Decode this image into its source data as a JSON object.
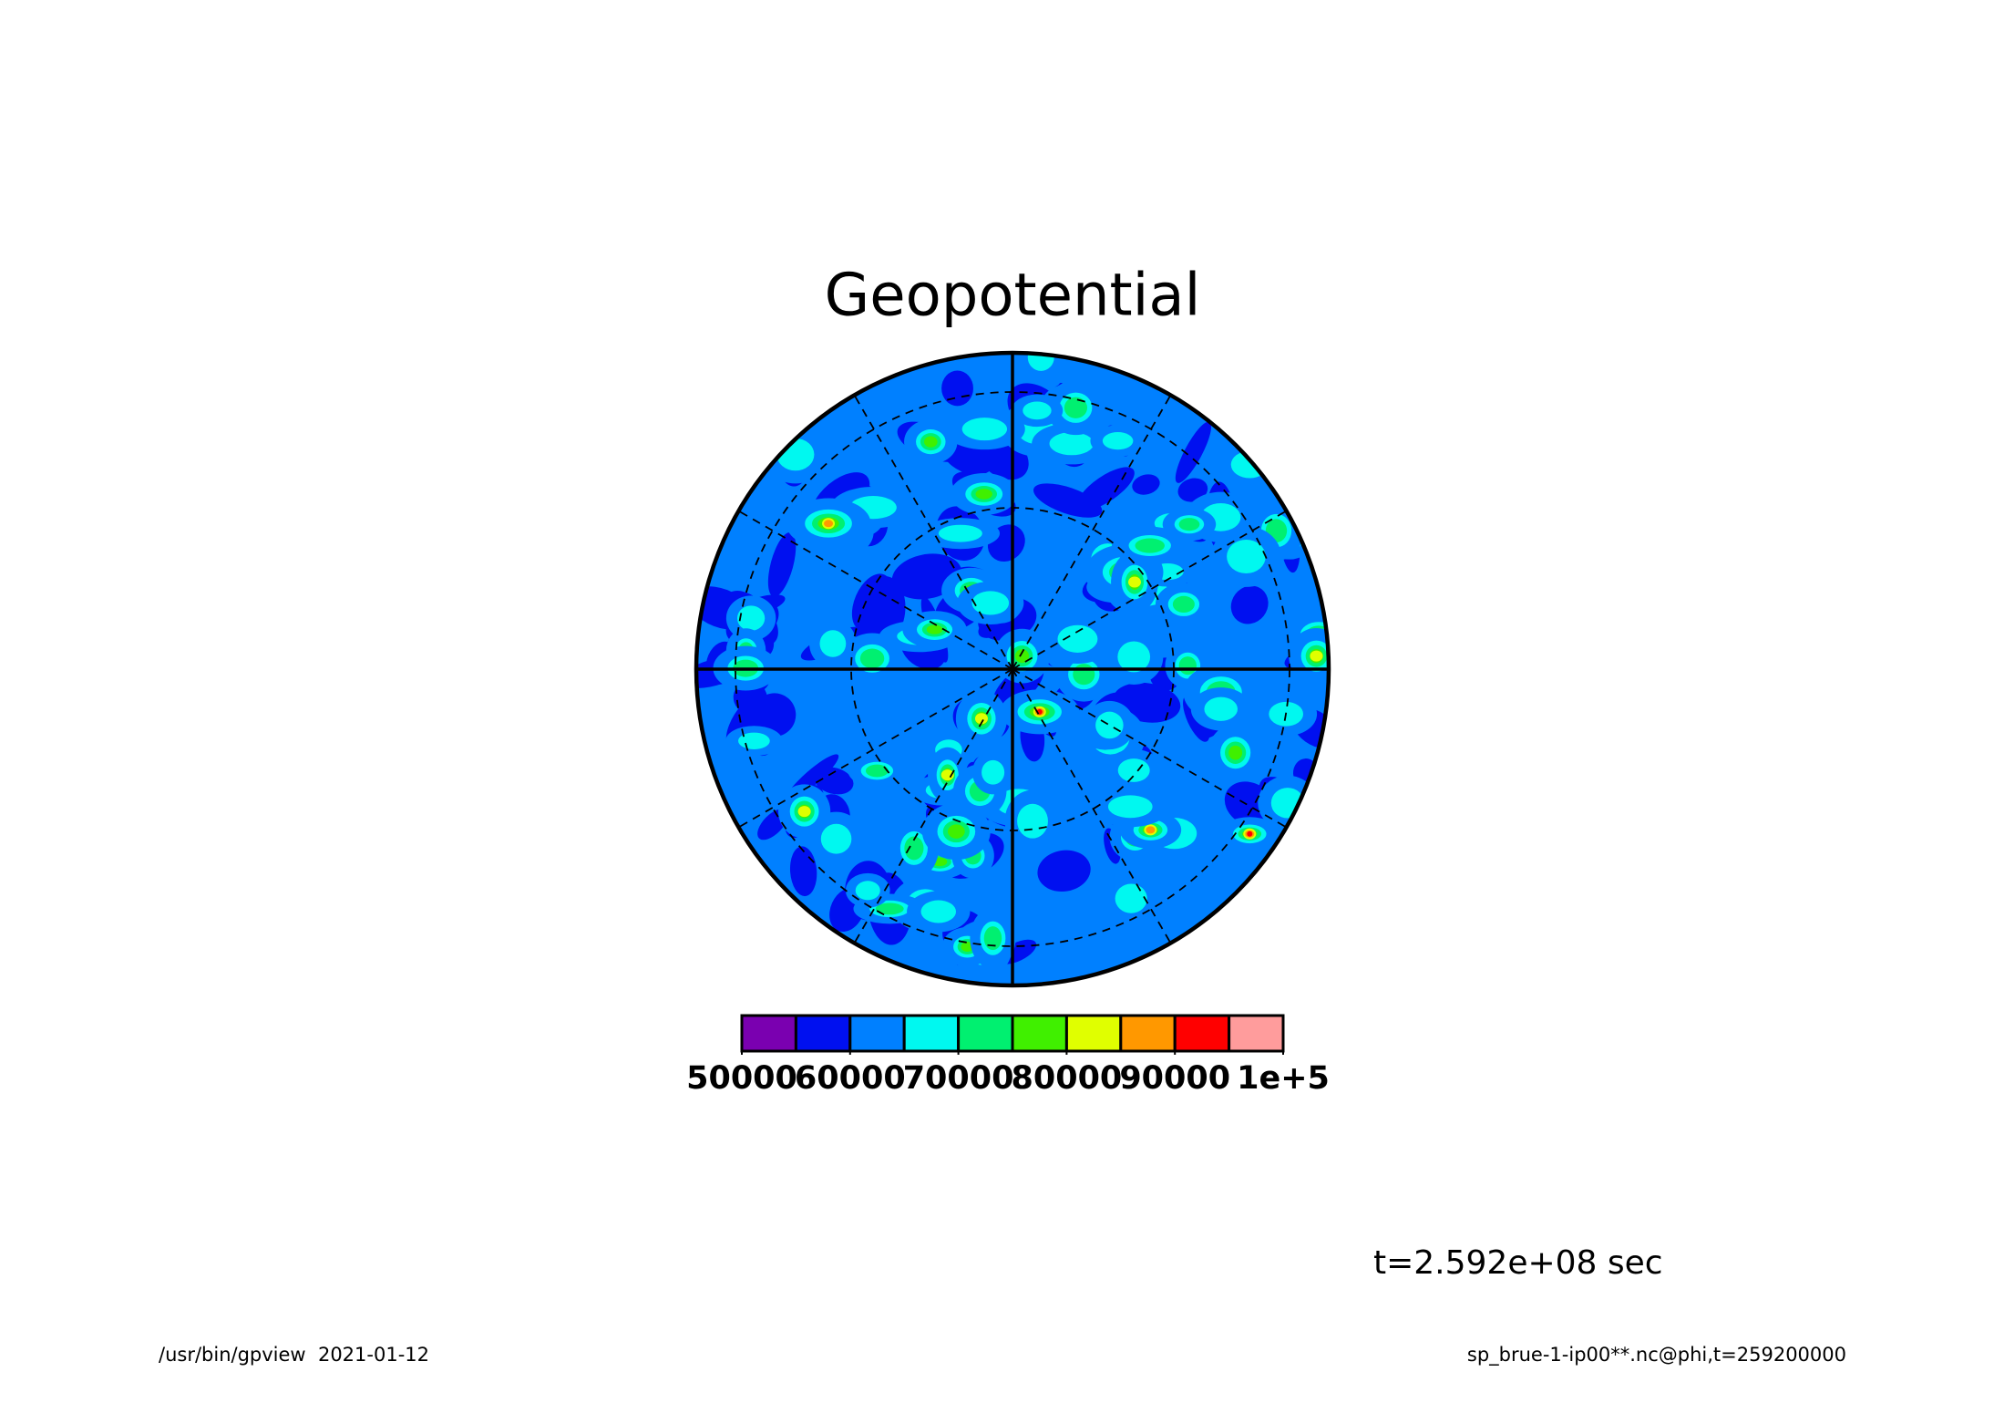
{
  "chart_data": {
    "type": "polar-contour",
    "title": "Geopotential",
    "time_label": "t=2.592e+08 sec",
    "footer_left": "/usr/bin/gpview  2021-01-12",
    "footer_right": "sp_brue-1-ip00**.nc@phi,t=259200000",
    "colorbar": {
      "levels": [
        50000,
        55000,
        60000,
        65000,
        70000,
        75000,
        80000,
        85000,
        90000,
        95000,
        100000
      ],
      "colors": [
        "#7a00b0",
        "#0010f0",
        "#0080ff",
        "#00f8f0",
        "#00f070",
        "#40f000",
        "#e0ff00",
        "#ff9800",
        "#ff0000",
        "#ff9c9c"
      ],
      "lim": [
        50000,
        100000
      ],
      "ticks": [
        50000,
        60000,
        70000,
        80000,
        90000,
        {
          "value": 100000,
          "label": "1e+5"
        }
      ]
    }
  }
}
